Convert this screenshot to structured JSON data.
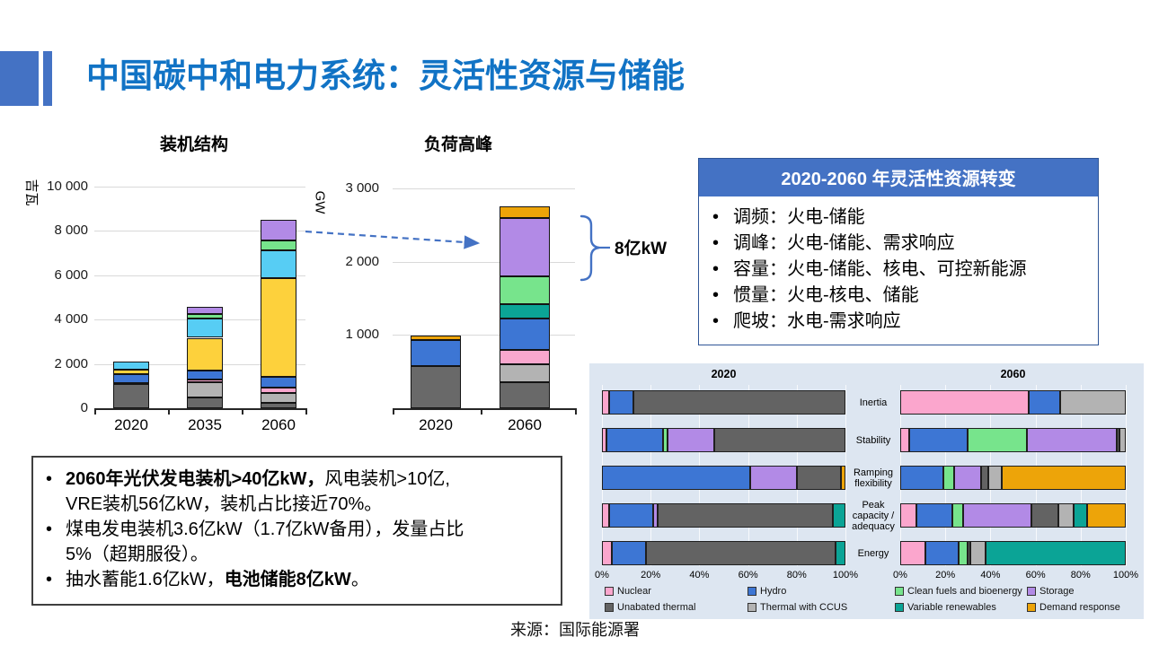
{
  "slide_title": "中国碳中和电力系统：灵活性资源与储能",
  "source": "来源：国际能源署",
  "storage_annotation": "8亿kW",
  "palette": {
    "accent_blue": "#4472c4",
    "title_blue": "#1173c5",
    "panel_background": "#dde6f1"
  },
  "flex_box": {
    "header": "2020-2060 年灵活性资源转变",
    "items": [
      "调频：火电-储能",
      "调峰：火电-储能、需求响应",
      "容量：火电-储能、核电、可控新能源",
      "惯量：火电-核电、储能",
      "爬坡：水电-需求响应"
    ]
  },
  "notes_box": {
    "items": [
      {
        "segs": [
          {
            "t": "2060年光伏发电装机>40亿kW，",
            "b": true
          },
          {
            "t": "风电装机>10亿,",
            "b": false
          },
          {
            "br": true
          },
          {
            "t": "VRE装机56亿kW，装机占比接近70%。",
            "b": false
          }
        ]
      },
      {
        "segs": [
          {
            "t": "煤电发电装机3.6亿kW（1.7亿kW备用），发量占比",
            "b": false
          },
          {
            "br": true
          },
          {
            "t": "5%（超期服役）。",
            "b": false
          }
        ]
      },
      {
        "segs": [
          {
            "t": "抽水蓄能1.6亿kW，",
            "b": false
          },
          {
            "t": "电池储能8亿kW",
            "b": true
          },
          {
            "t": "。",
            "b": false
          }
        ]
      }
    ]
  },
  "chart_data": [
    {
      "id": "capacity",
      "type": "bar",
      "stacked": true,
      "title": "装机结构",
      "ylabel": "吉瓦",
      "categories": [
        "2020",
        "2035",
        "2060"
      ],
      "ylim": [
        0,
        10000
      ],
      "grid": true,
      "yticks": [
        {
          "v": 0,
          "label": "0"
        },
        {
          "v": 2000,
          "label": "2 000"
        },
        {
          "v": 4000,
          "label": "4 000"
        },
        {
          "v": 6000,
          "label": "6 000"
        },
        {
          "v": 8000,
          "label": "8 000"
        },
        {
          "v": 10000,
          "label": "10 000"
        }
      ],
      "series": [
        {
          "name": "dark-gray-segment",
          "color": "#696969",
          "values": [
            1100,
            480,
            260
          ]
        },
        {
          "name": "light-gray-segment",
          "color": "#b3b3b3",
          "values": [
            0,
            680,
            420
          ]
        },
        {
          "name": "pink-segment",
          "color": "#f9a7ce",
          "values": [
            50,
            140,
            250
          ]
        },
        {
          "name": "blue-segment",
          "color": "#3d76d4",
          "values": [
            380,
            400,
            500
          ]
        },
        {
          "name": "yellow-segment",
          "color": "#fdd13c",
          "values": [
            230,
            1480,
            4450
          ]
        },
        {
          "name": "cyan-segment",
          "color": "#57cdf4",
          "values": [
            330,
            880,
            1230
          ]
        },
        {
          "name": "green-segment",
          "color": "#77e48c",
          "values": [
            0,
            190,
            450
          ]
        },
        {
          "name": "purple-segment",
          "color": "#b28ae6",
          "values": [
            0,
            340,
            950
          ]
        }
      ]
    },
    {
      "id": "peakload",
      "type": "bar",
      "stacked": true,
      "title": "负荷高峰",
      "ylabel": "GW",
      "categories": [
        "2020",
        "2060"
      ],
      "ylim": [
        0,
        3000
      ],
      "grid": true,
      "yticks": [
        {
          "v": 1000,
          "label": "1 000"
        },
        {
          "v": 2000,
          "label": "2 000"
        },
        {
          "v": 3000,
          "label": "3 000"
        }
      ],
      "series": [
        {
          "name": "dark-gray-segment",
          "color": "#696969",
          "values": [
            570,
            360
          ]
        },
        {
          "name": "light-gray-segment",
          "color": "#b3b3b3",
          "values": [
            0,
            240
          ]
        },
        {
          "name": "pink-segment",
          "color": "#f9a7ce",
          "values": [
            0,
            200
          ]
        },
        {
          "name": "blue-segment",
          "color": "#3d76d4",
          "values": [
            360,
            430
          ]
        },
        {
          "name": "teal-segment",
          "color": "#0ba496",
          "values": [
            0,
            190
          ]
        },
        {
          "name": "green-segment",
          "color": "#77e48c",
          "values": [
            0,
            380
          ]
        },
        {
          "name": "purple-segment",
          "color": "#b28ae6",
          "values": [
            0,
            800
          ]
        },
        {
          "name": "orange-segment",
          "color": "#eda409",
          "values": [
            60,
            150
          ]
        }
      ]
    },
    {
      "id": "iea",
      "type": "bar-horizontal",
      "stacked": true,
      "unit": "%",
      "group_headers": [
        "2020",
        "2060"
      ],
      "categories": [
        "Inertia",
        "Stability",
        "Ramping flexibility",
        "Peak capacity / adequacy",
        "Energy"
      ],
      "xticks": [
        "0%",
        "20%",
        "40%",
        "60%",
        "80%",
        "100%"
      ],
      "xlim": [
        0,
        100
      ],
      "legend_position": "bottom",
      "series": [
        {
          "name": "Nuclear",
          "color": "#fba6cd",
          "y2020": [
            3,
            2,
            0,
            3,
            4
          ],
          "y2060": [
            57,
            4,
            0,
            7,
            11
          ]
        },
        {
          "name": "Hydro",
          "color": "#3d76d4",
          "y2020": [
            10,
            23,
            61,
            18,
            14
          ],
          "y2060": [
            14,
            26,
            19,
            16,
            15
          ]
        },
        {
          "name": "Clean fuels and bioenergy",
          "color": "#77e48c",
          "y2020": [
            0,
            2,
            0,
            0,
            0
          ],
          "y2060": [
            0,
            26,
            5,
            5,
            4
          ]
        },
        {
          "name": "Storage",
          "color": "#b28ae6",
          "y2020": [
            0,
            19,
            19,
            2,
            0
          ],
          "y2060": [
            0,
            40,
            12,
            30,
            0
          ]
        },
        {
          "name": "Unabated thermal",
          "color": "#636363",
          "y2020": [
            87,
            54,
            18,
            72,
            78
          ],
          "y2060": [
            0,
            1,
            3,
            12,
            1
          ]
        },
        {
          "name": "Thermal with CCUS",
          "color": "#b3b3b3",
          "y2020": [
            0,
            0,
            0,
            0,
            0
          ],
          "y2060": [
            29,
            3,
            6,
            7,
            7
          ]
        },
        {
          "name": "Variable renewables",
          "color": "#0ba496",
          "y2020": [
            0,
            0,
            0,
            5,
            4
          ],
          "y2060": [
            0,
            0,
            0,
            6,
            62
          ]
        },
        {
          "name": "Demand response",
          "color": "#eda409",
          "y2020": [
            0,
            0,
            2,
            0,
            0
          ],
          "y2060": [
            0,
            0,
            55,
            17,
            0
          ]
        }
      ]
    }
  ]
}
